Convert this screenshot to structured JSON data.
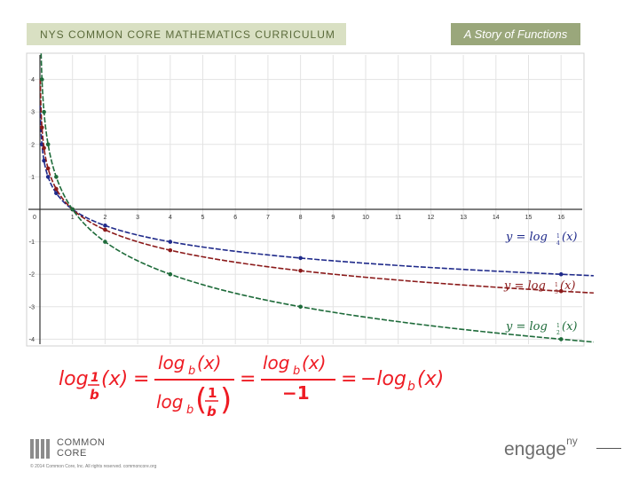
{
  "header": {
    "curriculum_label": "NYS COMMON CORE MATHEMATICS CURRICULUM",
    "module_label": "A Story of Functions"
  },
  "chart_data": {
    "type": "line",
    "title": "",
    "xlabel": "",
    "ylabel": "",
    "xlim": [
      -0.2,
      17
    ],
    "ylim": [
      -4.1,
      4.8
    ],
    "grid": true,
    "x_tick_labels": [
      "0",
      "1",
      "2",
      "3",
      "4",
      "5",
      "6",
      "7",
      "8",
      "9",
      "10",
      "11",
      "12",
      "13",
      "14",
      "15",
      "16"
    ],
    "y_tick_labels": [
      "4",
      "3",
      "2",
      "1",
      "0",
      "-1",
      "-2",
      "-3",
      "-4"
    ],
    "series": [
      {
        "name": "y = log_{1/4}(x)",
        "color": "#1f2a8a",
        "points": [
          [
            0.0625,
            2
          ],
          [
            0.125,
            1.5
          ],
          [
            0.25,
            1
          ],
          [
            0.5,
            0.5
          ],
          [
            1,
            0
          ],
          [
            2,
            -0.5
          ],
          [
            4,
            -1
          ],
          [
            8,
            -1.5
          ],
          [
            16,
            -2
          ]
        ],
        "label_tex": [
          "y = log",
          "1",
          "4",
          "(x)"
        ]
      },
      {
        "name": "y = log_{1/3}(x)",
        "color": "#8b1a1a",
        "points": [
          [
            0.0625,
            2.52
          ],
          [
            0.125,
            1.89
          ],
          [
            0.25,
            1.26
          ],
          [
            0.5,
            0.63
          ],
          [
            1,
            0
          ],
          [
            2,
            -0.63
          ],
          [
            4,
            -1.26
          ],
          [
            8,
            -1.89
          ],
          [
            16,
            -2.52
          ]
        ],
        "label_tex": [
          "y = log",
          "1",
          "3",
          "(x)"
        ]
      },
      {
        "name": "y = log_{1/2}(x)",
        "color": "#1e6b3a",
        "points": [
          [
            0.0625,
            4
          ],
          [
            0.125,
            3
          ],
          [
            0.25,
            2
          ],
          [
            0.5,
            1
          ],
          [
            1,
            0
          ],
          [
            2,
            -1
          ],
          [
            4,
            -2
          ],
          [
            8,
            -3
          ],
          [
            16,
            -4
          ]
        ],
        "label_tex": [
          "y = log",
          "1",
          "2",
          "(x)"
        ]
      }
    ]
  },
  "formula": {
    "lhs_log": "log",
    "lhs_num": "1",
    "lhs_den": "b",
    "lhs_arg": "(x)",
    "eq": "=",
    "f1_num": "log",
    "f1_num_sub": "b",
    "f1_num_arg": "(x)",
    "f1_den": "log",
    "f1_den_sub": "b",
    "f1_den_frac_num": "1",
    "f1_den_frac_den": "b",
    "f2_num": "log",
    "f2_num_sub": "b",
    "f2_num_arg": "(x)",
    "f2_den": "−1",
    "rhs": "−log",
    "rhs_sub": "b",
    "rhs_arg": "(x)"
  },
  "footer": {
    "logo_line1": "COMMON",
    "logo_line2": "CORE",
    "copyright": "© 2014 Common Core, Inc. All rights reserved. commoncore.org",
    "engage": "engage",
    "engage_sup": "ny"
  }
}
